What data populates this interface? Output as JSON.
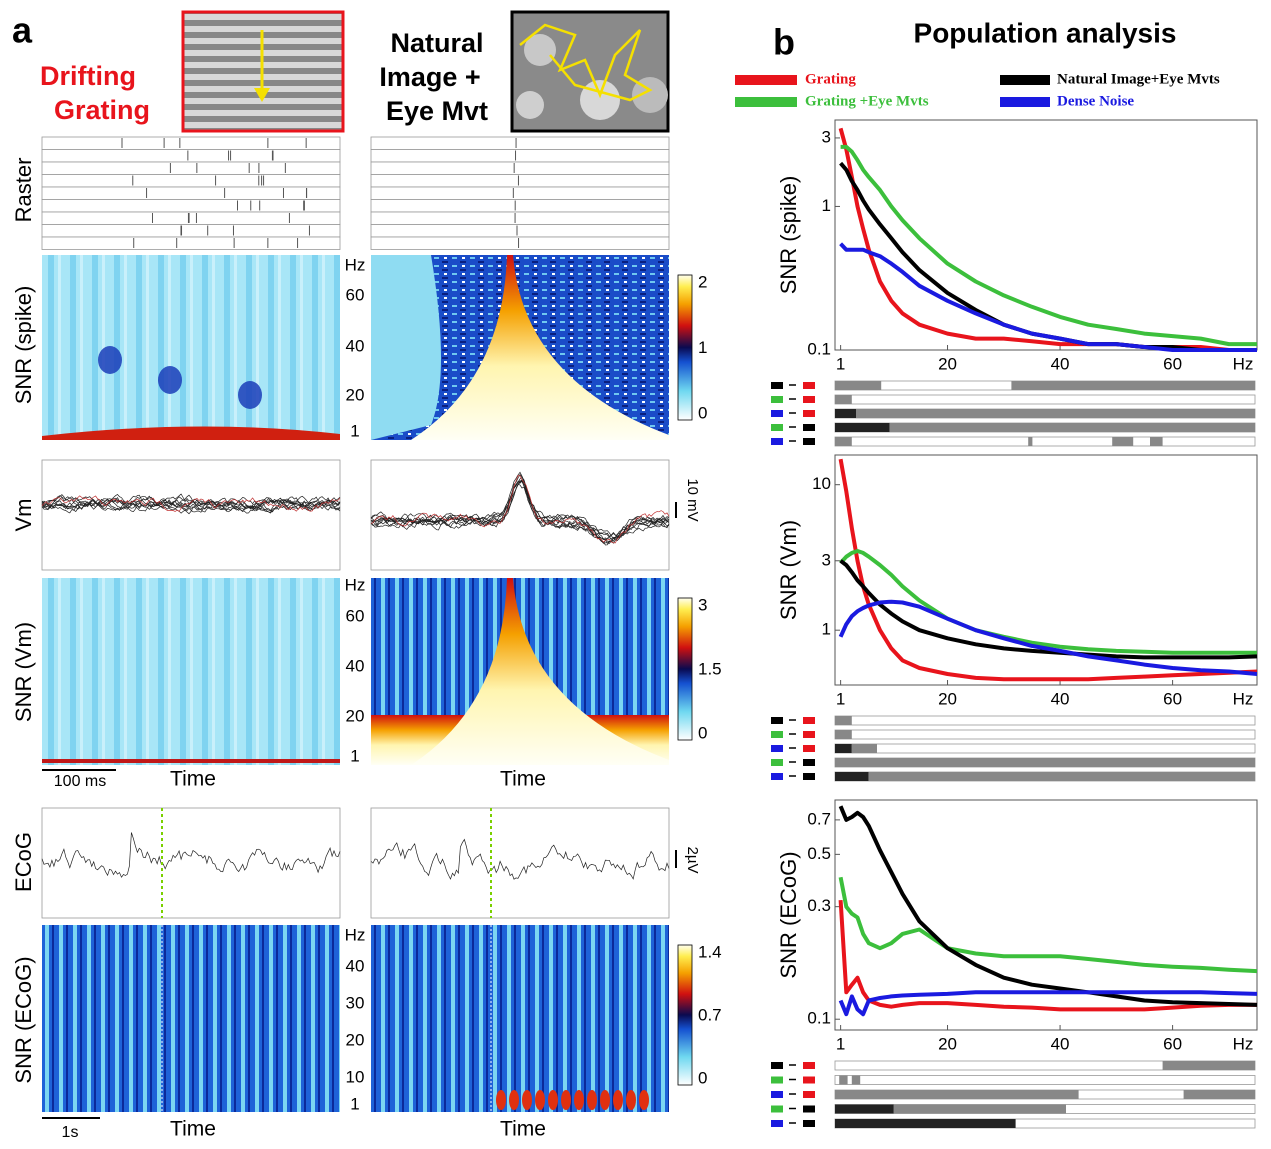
{
  "panel_a": {
    "label": "a",
    "columns": [
      {
        "title_lines": [
          "Drifting",
          "Grating"
        ]
      },
      {
        "title_lines": [
          "Natural",
          "Image +",
          "Eye Mvt"
        ]
      }
    ],
    "row_labels": [
      "Raster",
      "SNR (spike)",
      "Vm",
      "SNR (Vm)",
      "ECoG",
      "SNR (ECoG)"
    ],
    "y_unit": "Hz",
    "heatmaps": [
      {
        "yticks": [
          60,
          40,
          20,
          1
        ],
        "colorbar_ticks": [
          2,
          1,
          0
        ]
      },
      {
        "yticks": [
          60,
          40,
          20,
          1
        ],
        "colorbar_ticks": [
          3,
          1.5,
          0
        ]
      },
      {
        "yticks": [
          40,
          30,
          20,
          10,
          1
        ],
        "colorbar_ticks": [
          1.4,
          0.7,
          0
        ]
      }
    ],
    "scale_bars": [
      "10 mV",
      "2µV",
      "100 ms",
      "1s"
    ],
    "x_label": "Time"
  },
  "panel_b": {
    "label": "b",
    "title": "Population analysis"
  },
  "chart_data": [
    {
      "type": "line",
      "y_label": "SNR (spike)",
      "log_y": true,
      "x_unit": "Hz",
      "xlim": [
        0,
        75
      ],
      "xticks": [
        1,
        20,
        40,
        60
      ],
      "ylim": [
        0.1,
        4
      ],
      "yticks": [
        0.1,
        1,
        3
      ],
      "x": [
        1,
        2,
        3,
        4,
        5,
        6,
        8,
        10,
        12,
        15,
        20,
        25,
        30,
        35,
        40,
        45,
        50,
        55,
        60,
        65,
        70,
        75
      ],
      "series": [
        {
          "name": "Grating",
          "color": "#e8141c",
          "values": [
            3.5,
            2.5,
            1.6,
            1.0,
            0.7,
            0.5,
            0.3,
            0.22,
            0.18,
            0.15,
            0.13,
            0.12,
            0.12,
            0.115,
            0.11,
            0.11,
            0.11,
            0.105,
            0.105,
            0.105,
            0.1,
            0.1
          ]
        },
        {
          "name": "Grating +Eye Mvts",
          "color": "#3cbf3c",
          "values": [
            2.6,
            2.6,
            2.4,
            2.1,
            1.8,
            1.6,
            1.3,
            1.0,
            0.8,
            0.6,
            0.4,
            0.3,
            0.24,
            0.2,
            0.17,
            0.15,
            0.14,
            0.13,
            0.125,
            0.12,
            0.11,
            0.11
          ]
        },
        {
          "name": "Natural Image+Eye Mvts",
          "color": "#000000",
          "values": [
            2.0,
            1.8,
            1.5,
            1.3,
            1.1,
            0.95,
            0.75,
            0.6,
            0.48,
            0.36,
            0.25,
            0.19,
            0.15,
            0.13,
            0.12,
            0.11,
            0.11,
            0.105,
            0.105,
            0.1,
            0.1,
            0.1
          ]
        },
        {
          "name": "Dense Noise",
          "color": "#1a1ae0",
          "values": [
            0.55,
            0.5,
            0.5,
            0.5,
            0.5,
            0.48,
            0.45,
            0.4,
            0.35,
            0.28,
            0.22,
            0.18,
            0.15,
            0.13,
            0.12,
            0.11,
            0.11,
            0.105,
            0.1,
            0.1,
            0.1,
            0.1
          ]
        }
      ]
    },
    {
      "type": "line",
      "y_label": "SNR (Vm)",
      "log_y": true,
      "x_unit": "Hz",
      "xlim": [
        0,
        75
      ],
      "xticks": [
        1,
        20,
        40,
        60
      ],
      "ylim": [
        0.42,
        16
      ],
      "yticks": [
        1,
        3,
        10
      ],
      "x": [
        1,
        2,
        3,
        4,
        5,
        6,
        8,
        10,
        12,
        15,
        20,
        25,
        30,
        35,
        40,
        45,
        50,
        55,
        60,
        65,
        70,
        75
      ],
      "series": [
        {
          "color": "#e8141c",
          "values": [
            15,
            9,
            5,
            3,
            2,
            1.5,
            1,
            0.75,
            0.62,
            0.55,
            0.5,
            0.47,
            0.46,
            0.46,
            0.46,
            0.46,
            0.47,
            0.48,
            0.49,
            0.5,
            0.51,
            0.52
          ]
        },
        {
          "color": "#3cbf3c",
          "values": [
            2.9,
            3.2,
            3.4,
            3.5,
            3.4,
            3.2,
            2.8,
            2.4,
            2.0,
            1.6,
            1.2,
            1.0,
            0.9,
            0.82,
            0.77,
            0.74,
            0.72,
            0.71,
            0.7,
            0.7,
            0.7,
            0.7
          ]
        },
        {
          "color": "#000000",
          "values": [
            3.0,
            2.8,
            2.5,
            2.2,
            2.0,
            1.8,
            1.5,
            1.3,
            1.15,
            1.0,
            0.88,
            0.8,
            0.75,
            0.72,
            0.7,
            0.68,
            0.66,
            0.65,
            0.65,
            0.65,
            0.65,
            0.66
          ]
        },
        {
          "color": "#1a1ae0",
          "values": [
            0.9,
            1.1,
            1.25,
            1.35,
            1.42,
            1.48,
            1.55,
            1.57,
            1.55,
            1.45,
            1.2,
            1.0,
            0.88,
            0.78,
            0.72,
            0.66,
            0.62,
            0.58,
            0.55,
            0.53,
            0.52,
            0.5
          ]
        }
      ]
    },
    {
      "type": "line",
      "y_label": "SNR (ECoG)",
      "log_y": true,
      "x_unit": "Hz",
      "xlim": [
        0,
        75
      ],
      "xticks": [
        1,
        20,
        40,
        60
      ],
      "ylim": [
        0.09,
        0.85
      ],
      "yticks": [
        0.1,
        0.3,
        0.5,
        0.7
      ],
      "x": [
        1,
        2,
        3,
        4,
        5,
        6,
        8,
        10,
        12,
        15,
        20,
        25,
        30,
        35,
        40,
        45,
        50,
        55,
        60,
        65,
        70,
        75
      ],
      "series": [
        {
          "color": "#e8141c",
          "values": [
            0.32,
            0.13,
            0.14,
            0.15,
            0.13,
            0.12,
            0.115,
            0.113,
            0.115,
            0.117,
            0.117,
            0.115,
            0.113,
            0.112,
            0.11,
            0.11,
            0.11,
            0.11,
            0.112,
            0.114,
            0.115,
            0.115
          ]
        },
        {
          "color": "#3cbf3c",
          "values": [
            0.4,
            0.3,
            0.28,
            0.27,
            0.23,
            0.21,
            0.2,
            0.21,
            0.23,
            0.24,
            0.2,
            0.19,
            0.185,
            0.185,
            0.185,
            0.18,
            0.175,
            0.17,
            0.167,
            0.165,
            0.162,
            0.16
          ]
        },
        {
          "color": "#000000",
          "values": [
            0.8,
            0.7,
            0.72,
            0.75,
            0.72,
            0.66,
            0.52,
            0.42,
            0.34,
            0.26,
            0.2,
            0.17,
            0.15,
            0.14,
            0.135,
            0.13,
            0.125,
            0.12,
            0.118,
            0.117,
            0.116,
            0.115
          ]
        },
        {
          "color": "#1a1ae0",
          "values": [
            0.12,
            0.105,
            0.125,
            0.11,
            0.105,
            0.12,
            0.123,
            0.125,
            0.126,
            0.127,
            0.128,
            0.13,
            0.13,
            0.13,
            0.13,
            0.13,
            0.13,
            0.13,
            0.13,
            0.13,
            0.129,
            0.128
          ]
        }
      ]
    }
  ]
}
